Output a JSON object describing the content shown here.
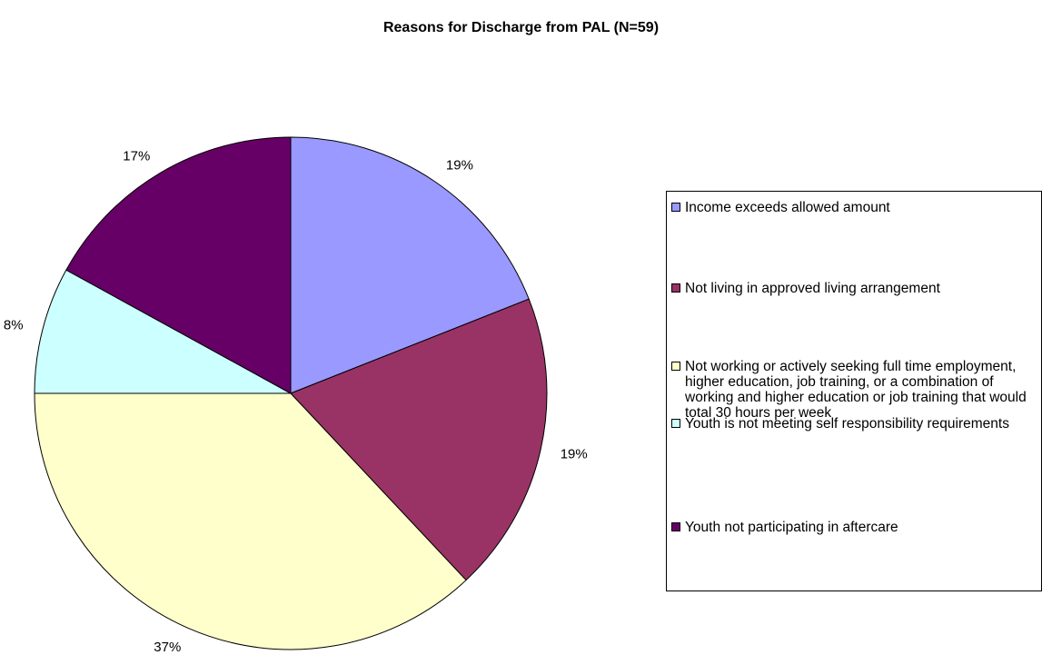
{
  "chart_data": {
    "type": "pie",
    "title": "Reasons for Discharge from PAL (N=59)",
    "slices": [
      {
        "label": "Income exceeds allowed amount",
        "value": 19,
        "display": "19%",
        "color": "#9999ff"
      },
      {
        "label": "Not living in approved living arrangement",
        "value": 19,
        "display": "19%",
        "color": "#993366"
      },
      {
        "label": "Not working or actively seeking full time employment, higher education, job training, or a combination of working and higher education or job training that would total 30 hours per week",
        "value": 37,
        "display": "37%",
        "color": "#ffffcc"
      },
      {
        "label": "Youth is not meeting self responsibility requirements",
        "value": 8,
        "display": "8%",
        "color": "#ccffff"
      },
      {
        "label": "Youth not participating in aftercare",
        "value": 17,
        "display": "17%",
        "color": "#660066"
      }
    ],
    "legend_position": "right"
  }
}
